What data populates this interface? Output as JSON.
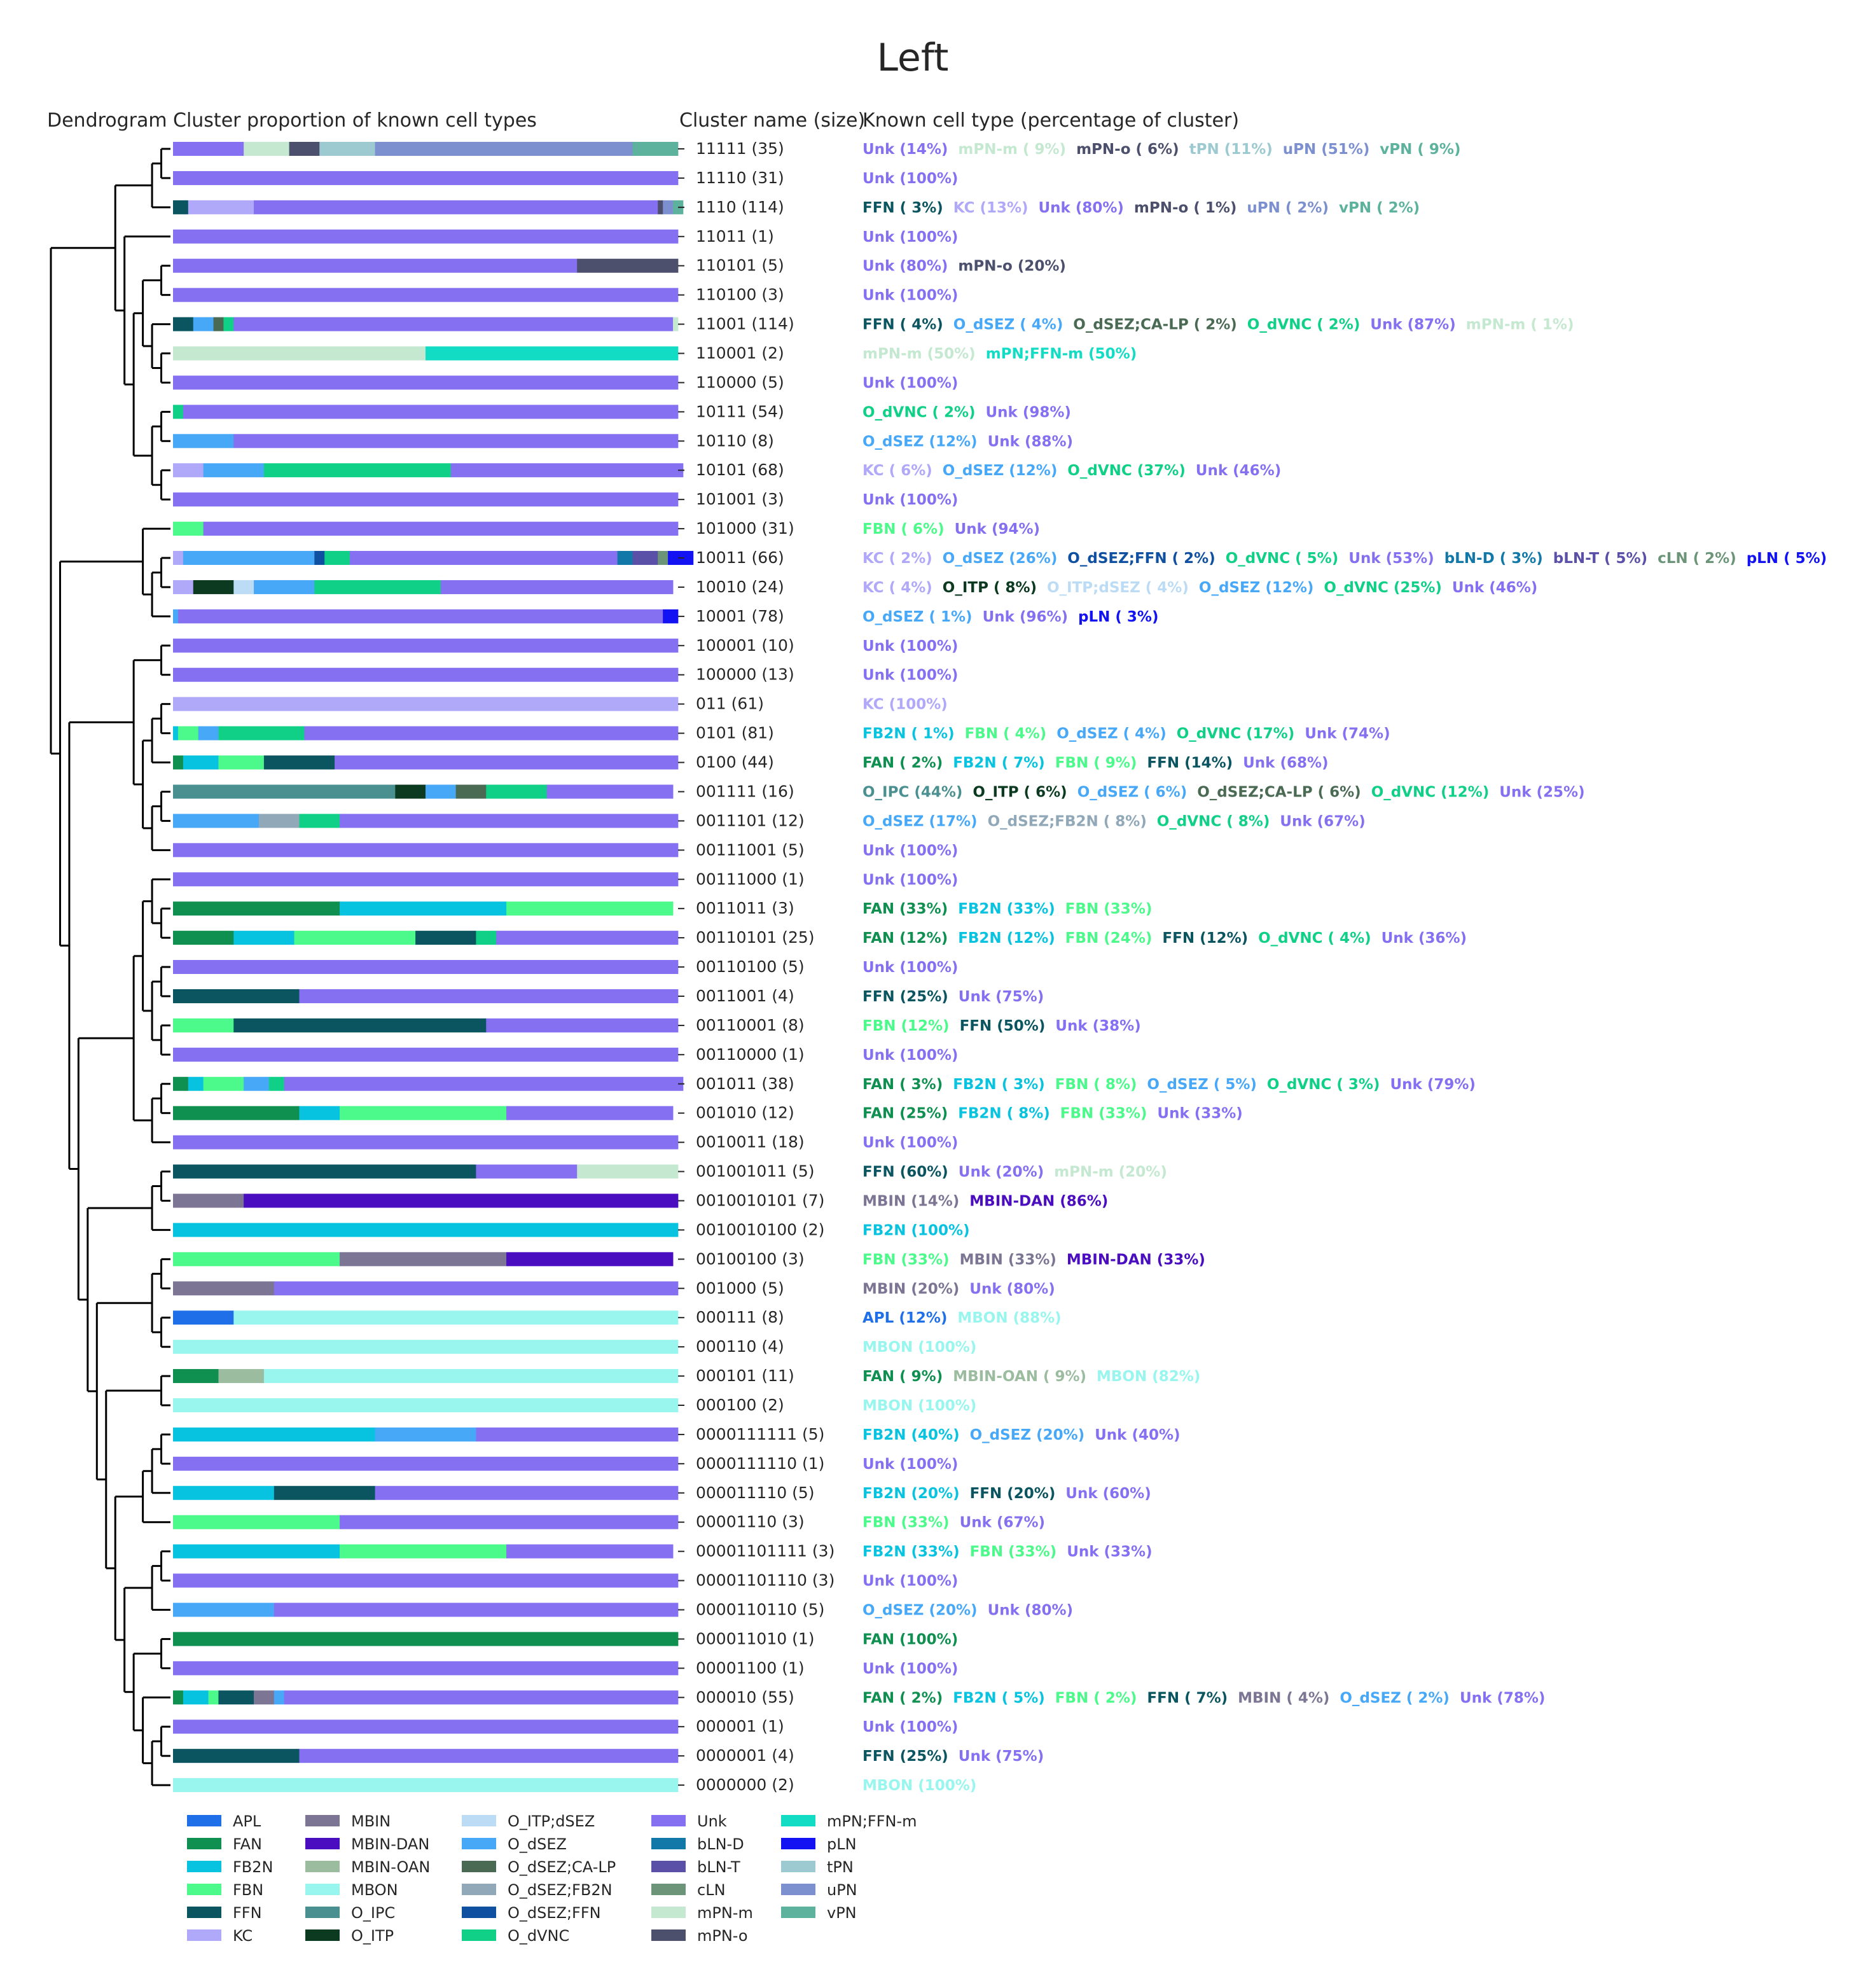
{
  "title": "Left",
  "headers": {
    "dendrogram": "Dendrogram",
    "proportion": "Cluster proportion of known cell types",
    "cluster": "Cluster name (size)",
    "known": "Known cell type (percentage of cluster)"
  },
  "colors": {
    "APL": "#1f6fe8",
    "FAN": "#0f9050",
    "FB2N": "#08c3e0",
    "FBN": "#4bfa8a",
    "FFN": "#0b5560",
    "KC": "#b0a8f8",
    "MBIN": "#7c7594",
    "MBIN-DAN": "#4a0ec0",
    "MBIN-OAN": "#9cbca0",
    "MBON": "#98f6ee",
    "O_IPC": "#4a9090",
    "O_ITP": "#0c3a20",
    "O_ITP;dSEZ": "#bcdcf6",
    "O_dSEZ": "#48a8f8",
    "O_dSEZ;CA-LP": "#4a6a54",
    "O_dSEZ;FB2N": "#90a8b8",
    "O_dSEZ;FFN": "#1050a0",
    "O_dVNC": "#10d088",
    "Unk": "#8470f0",
    "bLN-D": "#1278a8",
    "bLN-T": "#5a50a8",
    "cLN": "#6c9478",
    "mPN-m": "#c4e8d0",
    "mPN-o": "#4c506c",
    "mPN;FFN-m": "#12dcc4",
    "pLN": "#1212f2",
    "tPN": "#9ccad0",
    "uPN": "#7c90d0",
    "vPN": "#5cb29c"
  },
  "legend_order": [
    "APL",
    "FAN",
    "FB2N",
    "FBN",
    "FFN",
    "KC",
    "MBIN",
    "MBIN-DAN",
    "MBIN-OAN",
    "MBON",
    "O_IPC",
    "O_ITP",
    "O_ITP;dSEZ",
    "O_dSEZ",
    "O_dSEZ;CA-LP",
    "O_dSEZ;FB2N",
    "O_dSEZ;FFN",
    "O_dVNC",
    "Unk",
    "bLN-D",
    "bLN-T",
    "cLN",
    "mPN-m",
    "mPN-o",
    "mPN;FFN-m",
    "pLN",
    "tPN",
    "uPN",
    "vPN"
  ],
  "chart_data": {
    "type": "bar",
    "orientation": "horizontal-stacked",
    "title": "Left",
    "xlim": [
      0,
      100
    ],
    "legend": "bottom",
    "dendrogram_tree": "((((11111,11110),1110),(11011,(((110101,110100),(11001,(110001,110000))),((10111,10110),(10101,101001))))),((101000,((10011,10010),10001)),(((100001,100000),(((011,0101),0100),((001111,0011101),00111001))),((((00111000,(0011011,00110101)),((00110100,0011001),(00110001,00110000))),((001011,001010),0010011)),(((001001011,0010010101),0010010100),(((00100100,001000),(000111,000110)),((000101,000100),((((0000111111,0000111110),000011110),00001110),(((00001101111,00001101110),0000110110),((000011010,00001100),(000010,((000001,0000001),0000000))))))))))))",
    "clusters": [
      {
        "name": "11111",
        "size": 35,
        "segments": [
          [
            "Unk",
            14
          ],
          [
            "mPN-m",
            9
          ],
          [
            "mPN-o",
            6
          ],
          [
            "tPN",
            11
          ],
          [
            "uPN",
            51
          ],
          [
            "vPN",
            9
          ]
        ],
        "label": "11111 (35)"
      },
      {
        "name": "11110",
        "size": 31,
        "segments": [
          [
            "Unk",
            100
          ]
        ],
        "label": "11110 (31)"
      },
      {
        "name": "1110",
        "size": 114,
        "segments": [
          [
            "FFN",
            3
          ],
          [
            "KC",
            13
          ],
          [
            "Unk",
            80
          ],
          [
            "mPN-o",
            1
          ],
          [
            "uPN",
            2
          ],
          [
            "vPN",
            2
          ]
        ],
        "label": "1110 (114)"
      },
      {
        "name": "11011",
        "size": 1,
        "segments": [
          [
            "Unk",
            100
          ]
        ],
        "label": "11011 (1)"
      },
      {
        "name": "110101",
        "size": 5,
        "segments": [
          [
            "Unk",
            80
          ],
          [
            "mPN-o",
            20
          ]
        ],
        "label": "110101 (5)"
      },
      {
        "name": "110100",
        "size": 3,
        "segments": [
          [
            "Unk",
            100
          ]
        ],
        "label": "110100 (3)"
      },
      {
        "name": "11001",
        "size": 114,
        "segments": [
          [
            "FFN",
            4
          ],
          [
            "O_dSEZ",
            4
          ],
          [
            "O_dSEZ;CA-LP",
            2
          ],
          [
            "O_dVNC",
            2
          ],
          [
            "Unk",
            87
          ],
          [
            "mPN-m",
            1
          ]
        ],
        "label": "11001 (114)"
      },
      {
        "name": "110001",
        "size": 2,
        "segments": [
          [
            "mPN-m",
            50
          ],
          [
            "mPN;FFN-m",
            50
          ]
        ],
        "label": "110001 (2)"
      },
      {
        "name": "110000",
        "size": 5,
        "segments": [
          [
            "Unk",
            100
          ]
        ],
        "label": "110000 (5)"
      },
      {
        "name": "10111",
        "size": 54,
        "segments": [
          [
            "O_dVNC",
            2
          ],
          [
            "Unk",
            98
          ]
        ],
        "label": "10111 (54)"
      },
      {
        "name": "10110",
        "size": 8,
        "segments": [
          [
            "O_dSEZ",
            12
          ],
          [
            "Unk",
            88
          ]
        ],
        "label": "10110 (8)"
      },
      {
        "name": "10101",
        "size": 68,
        "segments": [
          [
            "KC",
            6
          ],
          [
            "O_dSEZ",
            12
          ],
          [
            "O_dVNC",
            37
          ],
          [
            "Unk",
            46
          ]
        ],
        "label": "10101 (68)"
      },
      {
        "name": "101001",
        "size": 3,
        "segments": [
          [
            "Unk",
            100
          ]
        ],
        "label": "101001 (3)"
      },
      {
        "name": "101000",
        "size": 31,
        "segments": [
          [
            "FBN",
            6
          ],
          [
            "Unk",
            94
          ]
        ],
        "label": "101000 (31)"
      },
      {
        "name": "10011",
        "size": 66,
        "segments": [
          [
            "KC",
            2
          ],
          [
            "O_dSEZ",
            26
          ],
          [
            "O_dSEZ;FFN",
            2
          ],
          [
            "O_dVNC",
            5
          ],
          [
            "Unk",
            53
          ],
          [
            "bLN-D",
            3
          ],
          [
            "bLN-T",
            5
          ],
          [
            "cLN",
            2
          ],
          [
            "pLN",
            5
          ]
        ],
        "label": "10011 (66)"
      },
      {
        "name": "10010",
        "size": 24,
        "segments": [
          [
            "KC",
            4
          ],
          [
            "O_ITP",
            8
          ],
          [
            "O_ITP;dSEZ",
            4
          ],
          [
            "O_dSEZ",
            12
          ],
          [
            "O_dVNC",
            25
          ],
          [
            "Unk",
            46
          ]
        ],
        "label": "10010 (24)"
      },
      {
        "name": "10001",
        "size": 78,
        "segments": [
          [
            "O_dSEZ",
            1
          ],
          [
            "Unk",
            96
          ],
          [
            "pLN",
            3
          ]
        ],
        "label": "10001 (78)"
      },
      {
        "name": "100001",
        "size": 10,
        "segments": [
          [
            "Unk",
            100
          ]
        ],
        "label": "100001 (10)"
      },
      {
        "name": "100000",
        "size": 13,
        "segments": [
          [
            "Unk",
            100
          ]
        ],
        "label": "100000 (13)"
      },
      {
        "name": "011",
        "size": 61,
        "segments": [
          [
            "KC",
            100
          ]
        ],
        "label": "011 (61)"
      },
      {
        "name": "0101",
        "size": 81,
        "segments": [
          [
            "FB2N",
            1
          ],
          [
            "FBN",
            4
          ],
          [
            "O_dSEZ",
            4
          ],
          [
            "O_dVNC",
            17
          ],
          [
            "Unk",
            74
          ]
        ],
        "label": "0101 (81)"
      },
      {
        "name": "0100",
        "size": 44,
        "segments": [
          [
            "FAN",
            2
          ],
          [
            "FB2N",
            7
          ],
          [
            "FBN",
            9
          ],
          [
            "FFN",
            14
          ],
          [
            "Unk",
            68
          ]
        ],
        "label": "0100 (44)"
      },
      {
        "name": "001111",
        "size": 16,
        "segments": [
          [
            "O_IPC",
            44
          ],
          [
            "O_ITP",
            6
          ],
          [
            "O_dSEZ",
            6
          ],
          [
            "O_dSEZ;CA-LP",
            6
          ],
          [
            "O_dVNC",
            12
          ],
          [
            "Unk",
            25
          ]
        ],
        "label": "001111 (16)"
      },
      {
        "name": "0011101",
        "size": 12,
        "segments": [
          [
            "O_dSEZ",
            17
          ],
          [
            "O_dSEZ;FB2N",
            8
          ],
          [
            "O_dVNC",
            8
          ],
          [
            "Unk",
            67
          ]
        ],
        "label": "0011101 (12)"
      },
      {
        "name": "00111001",
        "size": 5,
        "segments": [
          [
            "Unk",
            100
          ]
        ],
        "label": "00111001 (5)"
      },
      {
        "name": "00111000",
        "size": 1,
        "segments": [
          [
            "Unk",
            100
          ]
        ],
        "label": "00111000 (1)"
      },
      {
        "name": "0011011",
        "size": 3,
        "segments": [
          [
            "FAN",
            33
          ],
          [
            "FB2N",
            33
          ],
          [
            "FBN",
            33
          ]
        ],
        "label": "0011011 (3)"
      },
      {
        "name": "00110101",
        "size": 25,
        "segments": [
          [
            "FAN",
            12
          ],
          [
            "FB2N",
            12
          ],
          [
            "FBN",
            24
          ],
          [
            "FFN",
            12
          ],
          [
            "O_dVNC",
            4
          ],
          [
            "Unk",
            36
          ]
        ],
        "label": "00110101 (25)"
      },
      {
        "name": "00110100",
        "size": 5,
        "segments": [
          [
            "Unk",
            100
          ]
        ],
        "label": "00110100 (5)"
      },
      {
        "name": "0011001",
        "size": 4,
        "segments": [
          [
            "FFN",
            25
          ],
          [
            "Unk",
            75
          ]
        ],
        "label": "0011001 (4)"
      },
      {
        "name": "00110001",
        "size": 8,
        "segments": [
          [
            "FBN",
            12
          ],
          [
            "FFN",
            50
          ],
          [
            "Unk",
            38
          ]
        ],
        "label": "00110001 (8)"
      },
      {
        "name": "00110000",
        "size": 1,
        "segments": [
          [
            "Unk",
            100
          ]
        ],
        "label": "00110000 (1)"
      },
      {
        "name": "001011",
        "size": 38,
        "segments": [
          [
            "FAN",
            3
          ],
          [
            "FB2N",
            3
          ],
          [
            "FBN",
            8
          ],
          [
            "O_dSEZ",
            5
          ],
          [
            "O_dVNC",
            3
          ],
          [
            "Unk",
            79
          ]
        ],
        "label": "001011 (38)"
      },
      {
        "name": "001010",
        "size": 12,
        "segments": [
          [
            "FAN",
            25
          ],
          [
            "FB2N",
            8
          ],
          [
            "FBN",
            33
          ],
          [
            "Unk",
            33
          ]
        ],
        "label": "001010 (12)"
      },
      {
        "name": "0010011",
        "size": 18,
        "segments": [
          [
            "Unk",
            100
          ]
        ],
        "label": "0010011 (18)"
      },
      {
        "name": "001001011",
        "size": 5,
        "segments": [
          [
            "FFN",
            60
          ],
          [
            "Unk",
            20
          ],
          [
            "mPN-m",
            20
          ]
        ],
        "label": "001001011 (5)"
      },
      {
        "name": "0010010101",
        "size": 7,
        "segments": [
          [
            "MBIN",
            14
          ],
          [
            "MBIN-DAN",
            86
          ]
        ],
        "label": "0010010101 (7)"
      },
      {
        "name": "0010010100",
        "size": 2,
        "segments": [
          [
            "FB2N",
            100
          ]
        ],
        "label": "0010010100 (2)"
      },
      {
        "name": "00100100",
        "size": 3,
        "segments": [
          [
            "FBN",
            33
          ],
          [
            "MBIN",
            33
          ],
          [
            "MBIN-DAN",
            33
          ]
        ],
        "label": "00100100 (3)"
      },
      {
        "name": "001000",
        "size": 5,
        "segments": [
          [
            "MBIN",
            20
          ],
          [
            "Unk",
            80
          ]
        ],
        "label": "001000 (5)"
      },
      {
        "name": "000111",
        "size": 8,
        "segments": [
          [
            "APL",
            12
          ],
          [
            "MBON",
            88
          ]
        ],
        "label": "000111 (8)"
      },
      {
        "name": "000110",
        "size": 4,
        "segments": [
          [
            "MBON",
            100
          ]
        ],
        "label": "000110 (4)"
      },
      {
        "name": "000101",
        "size": 11,
        "segments": [
          [
            "FAN",
            9
          ],
          [
            "MBIN-OAN",
            9
          ],
          [
            "MBON",
            82
          ]
        ],
        "label": "000101 (11)"
      },
      {
        "name": "000100",
        "size": 2,
        "segments": [
          [
            "MBON",
            100
          ]
        ],
        "label": "000100 (2)"
      },
      {
        "name": "0000111111",
        "size": 5,
        "segments": [
          [
            "FB2N",
            40
          ],
          [
            "O_dSEZ",
            20
          ],
          [
            "Unk",
            40
          ]
        ],
        "label": "0000111111 (5)"
      },
      {
        "name": "0000111110",
        "size": 1,
        "segments": [
          [
            "Unk",
            100
          ]
        ],
        "label": "0000111110 (1)"
      },
      {
        "name": "000011110",
        "size": 5,
        "segments": [
          [
            "FB2N",
            20
          ],
          [
            "FFN",
            20
          ],
          [
            "Unk",
            60
          ]
        ],
        "label": "000011110 (5)"
      },
      {
        "name": "00001110",
        "size": 3,
        "segments": [
          [
            "FBN",
            33
          ],
          [
            "Unk",
            67
          ]
        ],
        "label": "00001110 (3)"
      },
      {
        "name": "00001101111",
        "size": 3,
        "segments": [
          [
            "FB2N",
            33
          ],
          [
            "FBN",
            33
          ],
          [
            "Unk",
            33
          ]
        ],
        "label": "00001101111 (3)"
      },
      {
        "name": "00001101110",
        "size": 3,
        "segments": [
          [
            "Unk",
            100
          ]
        ],
        "label": "00001101110 (3)"
      },
      {
        "name": "0000110110",
        "size": 5,
        "segments": [
          [
            "O_dSEZ",
            20
          ],
          [
            "Unk",
            80
          ]
        ],
        "label": "0000110110 (5)"
      },
      {
        "name": "000011010",
        "size": 1,
        "segments": [
          [
            "FAN",
            100
          ]
        ],
        "label": "000011010 (1)"
      },
      {
        "name": "00001100",
        "size": 1,
        "segments": [
          [
            "Unk",
            100
          ]
        ],
        "label": "00001100 (1)"
      },
      {
        "name": "000010",
        "size": 55,
        "segments": [
          [
            "FAN",
            2
          ],
          [
            "FB2N",
            5
          ],
          [
            "FBN",
            2
          ],
          [
            "FFN",
            7
          ],
          [
            "MBIN",
            4
          ],
          [
            "O_dSEZ",
            2
          ],
          [
            "Unk",
            78
          ]
        ],
        "label": "000010 (55)"
      },
      {
        "name": "000001",
        "size": 1,
        "segments": [
          [
            "Unk",
            100
          ]
        ],
        "label": "000001 (1)"
      },
      {
        "name": "0000001",
        "size": 4,
        "segments": [
          [
            "FFN",
            25
          ],
          [
            "Unk",
            75
          ]
        ],
        "label": "0000001 (4)"
      },
      {
        "name": "0000000",
        "size": 2,
        "segments": [
          [
            "MBON",
            100
          ]
        ],
        "label": "0000000 (2)"
      }
    ]
  }
}
